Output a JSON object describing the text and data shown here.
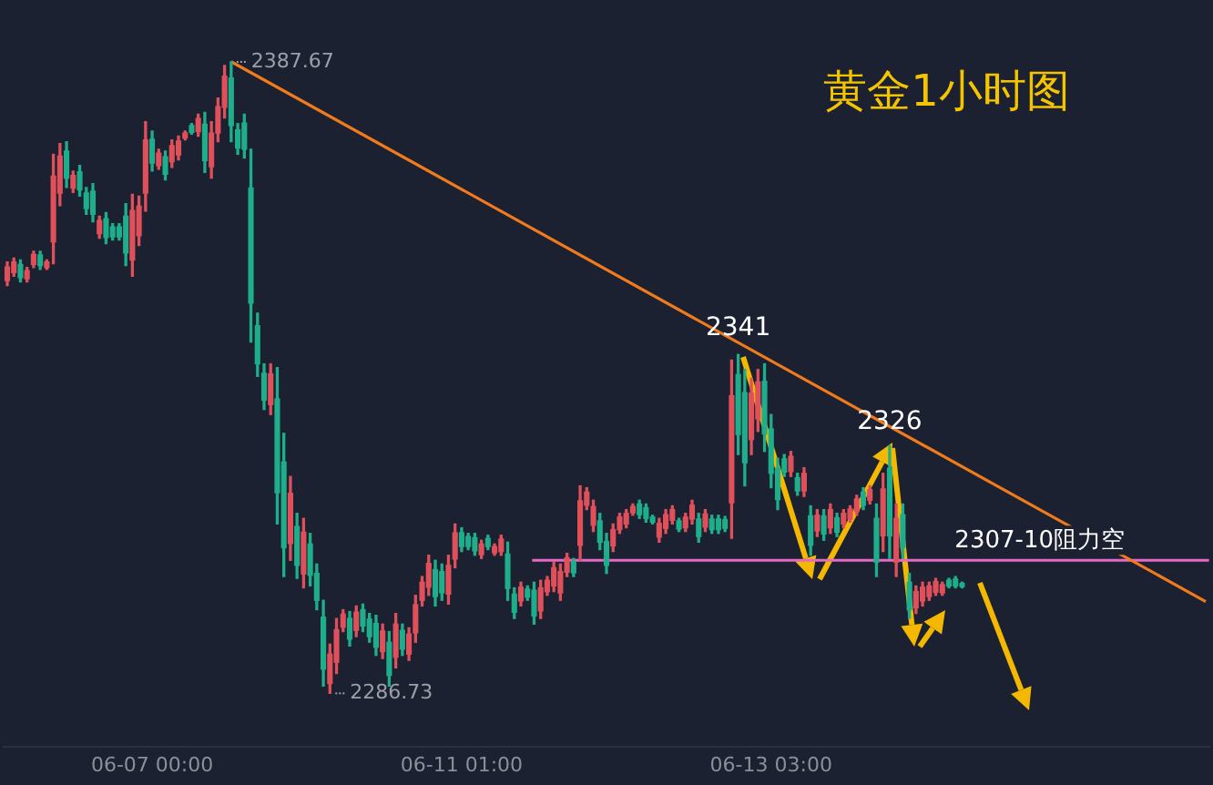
{
  "chart_data": {
    "type": "candlestick",
    "title": "黄金1小时图",
    "categories": [
      null,
      null,
      null,
      null,
      null,
      null,
      null,
      null,
      null,
      null,
      null,
      null,
      null,
      null,
      null,
      null,
      null,
      null,
      null,
      null,
      null,
      null,
      "06-07 00:00",
      null,
      null,
      null,
      null,
      null,
      null,
      null,
      null,
      null,
      null,
      null,
      null,
      null,
      null,
      null,
      null,
      null,
      null,
      null,
      null,
      null,
      null,
      null,
      null,
      null,
      null,
      null,
      null,
      null,
      null,
      null,
      null,
      null,
      null,
      null,
      null,
      null,
      null,
      null,
      null,
      null,
      null,
      null,
      null,
      null,
      null,
      "06-11 01:00",
      null,
      null,
      null,
      null,
      null,
      null,
      null,
      null,
      null,
      null,
      null,
      null,
      null,
      null,
      null,
      null,
      null,
      null,
      null,
      null,
      null,
      null,
      null,
      null,
      null,
      null,
      null,
      null,
      null,
      null,
      null,
      null,
      null,
      null,
      null,
      null,
      null,
      null,
      null,
      null,
      null,
      null,
      null,
      null,
      null,
      null,
      "06-13 03:00",
      null,
      null,
      null,
      null,
      null,
      null,
      null,
      null,
      null,
      null,
      null,
      null,
      null,
      null,
      null,
      null,
      null,
      null,
      null,
      null,
      null,
      null,
      null,
      null,
      null,
      null,
      null,
      null,
      null,
      null,
      null,
      null,
      null,
      null,
      null,
      null,
      null,
      null,
      null,
      null,
      null,
      null,
      null,
      null,
      null,
      null,
      null,
      null,
      null,
      null,
      null,
      null,
      null,
      null,
      null,
      null,
      null,
      null,
      null,
      null,
      null,
      null,
      null,
      null,
      null,
      null
    ],
    "ohlc": [
      [
        2352.7,
        2355.7,
        2351.9,
        2354.9
      ],
      [
        2354.0,
        2356.3,
        2353.4,
        2355.7
      ],
      [
        2355.3,
        2356.0,
        2352.5,
        2353.2
      ],
      [
        2353.0,
        2354.8,
        2352.5,
        2354.3
      ],
      [
        2355.3,
        2357.4,
        2354.8,
        2356.9
      ],
      [
        2356.8,
        2357.4,
        2354.5,
        2355.1
      ],
      [
        2354.8,
        2356.0,
        2354.5,
        2355.7
      ],
      [
        2358.9,
        2372.9,
        2355.4,
        2369.4
      ],
      [
        2366.7,
        2374.6,
        2364.7,
        2372.6
      ],
      [
        2373.4,
        2374.9,
        2367.6,
        2369.1
      ],
      [
        2367.5,
        2370.2,
        2366.8,
        2369.5
      ],
      [
        2370.1,
        2371.1,
        2366.2,
        2367.2
      ],
      [
        2366.7,
        2367.6,
        2363.3,
        2364.2
      ],
      [
        2367.0,
        2368.2,
        2362.1,
        2363.3
      ],
      [
        2360.2,
        2363.0,
        2359.5,
        2362.3
      ],
      [
        2362.6,
        2363.6,
        2358.6,
        2359.6
      ],
      [
        2361.3,
        2361.8,
        2359.2,
        2359.7
      ],
      [
        2361.3,
        2361.8,
        2359.2,
        2359.7
      ],
      [
        2363.0,
        2365.0,
        2355.1,
        2357.1
      ],
      [
        2356.0,
        2366.5,
        2353.4,
        2363.9
      ],
      [
        2359.9,
        2366.2,
        2358.3,
        2364.6
      ],
      [
        2366.7,
        2378.1,
        2363.8,
        2375.2
      ],
      [
        2375.3,
        2376.6,
        2370.2,
        2371.5
      ],
      [
        2371.1,
        2373.7,
        2370.5,
        2373.1
      ],
      [
        2372.5,
        2373.4,
        2368.8,
        2369.7
      ],
      [
        2371.7,
        2375.2,
        2370.8,
        2374.3
      ],
      [
        2372.8,
        2375.8,
        2372.0,
        2375.0
      ],
      [
        2375.5,
        2376.6,
        2375.2,
        2376.3
      ],
      [
        2377.5,
        2377.8,
        2376.1,
        2376.4
      ],
      [
        2376.5,
        2379.3,
        2375.8,
        2378.6
      ],
      [
        2377.7,
        2379.6,
        2370.0,
        2371.9
      ],
      [
        2370.9,
        2378.1,
        2369.1,
        2376.3
      ],
      [
        2376.3,
        2381.9,
        2374.9,
        2380.5
      ],
      [
        2380.4,
        2387.1,
        2378.7,
        2385.4
      ],
      [
        2385.1,
        2387.67,
        2374.9,
        2377.5
      ],
      [
        2376.8,
        2377.8,
        2372.9,
        2373.9
      ],
      [
        2377.9,
        2379.3,
        2372.3,
        2373.7
      ],
      [
        2367.5,
        2373.7,
        2342.9,
        2349.1
      ],
      [
        2345.5,
        2347.5,
        2337.4,
        2339.4
      ],
      [
        2337.9,
        2339.4,
        2332.1,
        2333.6
      ],
      [
        2332.9,
        2339.4,
        2331.3,
        2337.8
      ],
      [
        2333.8,
        2338.8,
        2313.8,
        2318.8
      ],
      [
        2323.7,
        2328.3,
        2305.4,
        2310.0
      ],
      [
        2310.7,
        2321.4,
        2308.0,
        2318.7
      ],
      [
        2313.4,
        2315.5,
        2305.1,
        2307.2
      ],
      [
        2305.8,
        2314.7,
        2303.6,
        2312.5
      ],
      [
        2310.6,
        2312.3,
        2303.9,
        2305.6
      ],
      [
        2305.9,
        2307.4,
        2300.1,
        2301.6
      ],
      [
        2298.9,
        2301.6,
        2287.9,
        2290.6
      ],
      [
        2288.3,
        2294.6,
        2286.73,
        2293.0
      ],
      [
        2291.7,
        2298.7,
        2289.9,
        2296.9
      ],
      [
        2297.3,
        2300.1,
        2296.6,
        2299.4
      ],
      [
        2298.7,
        2299.8,
        2294.3,
        2295.4
      ],
      [
        2296.8,
        2300.7,
        2295.8,
        2299.7
      ],
      [
        2300.1,
        2301.0,
        2296.6,
        2297.5
      ],
      [
        2298.6,
        2299.5,
        2294.9,
        2295.8
      ],
      [
        2297.9,
        2299.2,
        2292.8,
        2294.1
      ],
      [
        2293.4,
        2297.8,
        2292.3,
        2296.7
      ],
      [
        2294.9,
        2296.6,
        2287.9,
        2289.6
      ],
      [
        2292.5,
        2299.5,
        2290.8,
        2297.8
      ],
      [
        2296.8,
        2297.8,
        2292.8,
        2293.8
      ],
      [
        2293.0,
        2297.2,
        2292.0,
        2296.2
      ],
      [
        2296.4,
        2302.4,
        2294.9,
        2300.9
      ],
      [
        2301.6,
        2305.4,
        2300.7,
        2304.5
      ],
      [
        2303.7,
        2308.8,
        2302.4,
        2307.5
      ],
      [
        2306.5,
        2308.0,
        2300.7,
        2302.2
      ],
      [
        2306.2,
        2307.4,
        2301.6,
        2302.8
      ],
      [
        2302.6,
        2308.8,
        2301.0,
        2307.2
      ],
      [
        2308.2,
        2313.8,
        2306.8,
        2312.4
      ],
      [
        2312.4,
        2313.2,
        2309.4,
        2310.2
      ],
      [
        2311.8,
        2312.3,
        2309.7,
        2310.2
      ],
      [
        2311.6,
        2312.3,
        2308.8,
        2309.5
      ],
      [
        2308.9,
        2311.2,
        2308.3,
        2310.6
      ],
      [
        2311.5,
        2312.0,
        2309.7,
        2310.2
      ],
      [
        2309.2,
        2310.6,
        2308.8,
        2310.2
      ],
      [
        2309.4,
        2312.0,
        2308.8,
        2311.4
      ],
      [
        2309.0,
        2310.9,
        2301.6,
        2303.5
      ],
      [
        2302.6,
        2303.6,
        2298.7,
        2299.7
      ],
      [
        2301.5,
        2304.5,
        2300.7,
        2303.7
      ],
      [
        2303.4,
        2303.9,
        2301.6,
        2302.1
      ],
      [
        2303.2,
        2304.5,
        2297.8,
        2299.1
      ],
      [
        2299.9,
        2304.8,
        2298.7,
        2303.6
      ],
      [
        2303.0,
        2305.4,
        2302.4,
        2304.8
      ],
      [
        2303.9,
        2307.7,
        2303.0,
        2306.8
      ],
      [
        2302.8,
        2307.4,
        2301.6,
        2306.2
      ],
      [
        2306.1,
        2309.1,
        2305.4,
        2308.4
      ],
      [
        2307.7,
        2308.3,
        2305.4,
        2306.0
      ],
      [
        2310.4,
        2319.9,
        2308.0,
        2317.5
      ],
      [
        2316.8,
        2319.6,
        2316.1,
        2318.9
      ],
      [
        2313.6,
        2317.6,
        2312.6,
        2316.6
      ],
      [
        2314.3,
        2315.5,
        2309.7,
        2310.9
      ],
      [
        2311.0,
        2312.3,
        2305.9,
        2307.2
      ],
      [
        2310.3,
        2313.8,
        2309.4,
        2312.9
      ],
      [
        2312.9,
        2315.5,
        2312.3,
        2314.9
      ],
      [
        2313.8,
        2316.1,
        2313.2,
        2315.5
      ],
      [
        2315.6,
        2317.0,
        2315.2,
        2316.6
      ],
      [
        2317.0,
        2317.6,
        2314.7,
        2315.3
      ],
      [
        2316.4,
        2317.0,
        2314.1,
        2314.7
      ],
      [
        2314.9,
        2315.2,
        2313.8,
        2314.1
      ],
      [
        2311.7,
        2314.7,
        2310.9,
        2313.9
      ],
      [
        2313.1,
        2316.1,
        2312.3,
        2315.3
      ],
      [
        2314.4,
        2316.7,
        2313.8,
        2316.1
      ],
      [
        2314.3,
        2314.7,
        2312.6,
        2313.0
      ],
      [
        2313.2,
        2315.5,
        2312.6,
        2314.9
      ],
      [
        2314.6,
        2317.6,
        2313.8,
        2316.8
      ],
      [
        2314.6,
        2315.5,
        2310.9,
        2311.8
      ],
      [
        2313.3,
        2316.1,
        2312.6,
        2315.4
      ],
      [
        2314.6,
        2315.2,
        2312.3,
        2312.9
      ],
      [
        2314.6,
        2315.2,
        2312.3,
        2312.9
      ],
      [
        2314.5,
        2315.0,
        2312.6,
        2313.1
      ],
      [
        2317.2,
        2340.0,
        2311.5,
        2334.3
      ],
      [
        2337.7,
        2340.9,
        2324.9,
        2328.1
      ],
      [
        2334.8,
        2338.5,
        2319.9,
        2323.6
      ],
      [
        2327.3,
        2337.1,
        2324.9,
        2334.7
      ],
      [
        2330.6,
        2338.5,
        2328.6,
        2336.5
      ],
      [
        2336.6,
        2339.4,
        2325.4,
        2328.2
      ],
      [
        2329.0,
        2331.3,
        2319.6,
        2321.9
      ],
      [
        2322.7,
        2324.3,
        2316.1,
        2317.7
      ],
      [
        2324.2,
        2324.9,
        2321.4,
        2322.1
      ],
      [
        2322.2,
        2325.4,
        2321.4,
        2324.6
      ],
      [
        2321.2,
        2321.9,
        2318.4,
        2319.1
      ],
      [
        2319.1,
        2322.8,
        2318.2,
        2321.9
      ],
      [
        2315.1,
        2316.7,
        2308.8,
        2310.4
      ],
      [
        2312.7,
        2316.1,
        2311.8,
        2315.2
      ],
      [
        2315.1,
        2316.1,
        2311.2,
        2312.2
      ],
      [
        2313.2,
        2317.0,
        2312.3,
        2316.1
      ],
      [
        2314.8,
        2315.5,
        2311.8,
        2312.5
      ],
      [
        2313.8,
        2316.1,
        2313.2,
        2315.5
      ],
      [
        2314.6,
        2316.7,
        2314.1,
        2316.2
      ],
      [
        2315.8,
        2318.4,
        2315.2,
        2317.8
      ],
      [
        2318.9,
        2319.6,
        2316.1,
        2316.8
      ],
      [
        2317.6,
        2319.9,
        2317.0,
        2319.3
      ],
      [
        2314.7,
        2317.0,
        2305.4,
        2307.7
      ],
      [
        2311.9,
        2321.9,
        2309.4,
        2319.4
      ],
      [
        2322.7,
        2326.3,
        2308.3,
        2311.9
      ],
      [
        2307.7,
        2317.0,
        2305.4,
        2314.7
      ],
      [
        2315.3,
        2317.0,
        2308.3,
        2310.0
      ],
      [
        2304.5,
        2305.9,
        2298.7,
        2300.1
      ],
      [
        2300.4,
        2303.9,
        2299.5,
        2303.0
      ],
      [
        2301.5,
        2304.5,
        2300.7,
        2303.7
      ],
      [
        2302.2,
        2304.5,
        2301.6,
        2303.9
      ],
      [
        2302.9,
        2305.1,
        2302.4,
        2304.6
      ],
      [
        2302.8,
        2304.5,
        2302.4,
        2304.1
      ],
      [
        2304.8,
        2305.1,
        2303.6,
        2303.9
      ],
      [
        2305.0,
        2305.4,
        2303.6,
        2303.9
      ],
      [
        2304.3,
        2304.5,
        2303.6,
        2303.8
      ],
      null,
      null,
      null,
      null,
      null,
      null,
      null,
      null,
      null,
      null,
      null,
      null,
      null,
      null,
      null,
      null,
      null,
      null,
      null,
      null,
      null,
      null,
      null,
      null,
      null,
      null,
      null,
      null,
      null,
      null,
      null,
      null,
      null,
      null,
      null,
      null,
      null
    ],
    "colors": [
      "#e0505a",
      "#e0505a",
      "#1fae8c",
      "#e0505a",
      "#e0505a",
      "#1fae8c",
      "#e0505a",
      "#e0505a",
      "#e0505a",
      "#1fae8c",
      "#e0505a",
      "#1fae8c",
      "#1fae8c",
      "#1fae8c",
      "#e0505a",
      "#1fae8c",
      "#1fae8c",
      "#1fae8c",
      "#1fae8c",
      "#e0505a",
      "#e0505a",
      "#e0505a",
      "#1fae8c",
      "#e0505a",
      "#1fae8c",
      "#e0505a",
      "#e0505a",
      "#e0505a",
      "#1fae8c",
      "#e0505a",
      "#1fae8c",
      "#e0505a",
      "#e0505a",
      "#e0505a",
      "#1fae8c",
      "#1fae8c",
      "#1fae8c",
      "#1fae8c",
      "#1fae8c",
      "#1fae8c",
      "#e0505a",
      "#1fae8c",
      "#1fae8c",
      "#e0505a",
      "#1fae8c",
      "#e0505a",
      "#1fae8c",
      "#1fae8c",
      "#1fae8c",
      "#e0505a",
      "#e0505a",
      "#e0505a",
      "#1fae8c",
      "#e0505a",
      "#1fae8c",
      "#1fae8c",
      "#1fae8c",
      "#e0505a",
      "#1fae8c",
      "#e0505a",
      "#1fae8c",
      "#e0505a",
      "#e0505a",
      "#e0505a",
      "#e0505a",
      "#1fae8c",
      "#1fae8c",
      "#e0505a",
      "#e0505a",
      "#1fae8c",
      "#1fae8c",
      "#1fae8c",
      "#e0505a",
      "#1fae8c",
      "#e0505a",
      "#e0505a",
      "#1fae8c",
      "#1fae8c",
      "#e0505a",
      "#1fae8c",
      "#1fae8c",
      "#e0505a",
      "#e0505a",
      "#e0505a",
      "#e0505a",
      "#e0505a",
      "#1fae8c",
      "#e0505a",
      "#e0505a",
      "#e0505a",
      "#1fae8c",
      "#1fae8c",
      "#e0505a",
      "#e0505a",
      "#e0505a",
      "#e0505a",
      "#1fae8c",
      "#1fae8c",
      "#1fae8c",
      "#e0505a",
      "#e0505a",
      "#e0505a",
      "#1fae8c",
      "#e0505a",
      "#e0505a",
      "#1fae8c",
      "#e0505a",
      "#1fae8c",
      "#1fae8c",
      "#1fae8c",
      "#e0505a",
      "#1fae8c",
      "#1fae8c",
      "#e0505a",
      "#e0505a",
      "#1fae8c",
      "#1fae8c",
      "#1fae8c",
      "#1fae8c",
      "#e0505a",
      "#1fae8c",
      "#e0505a",
      "#1fae8c",
      "#e0505a",
      "#1fae8c",
      "#e0505a",
      "#1fae8c",
      "#e0505a",
      "#e0505a",
      "#e0505a",
      "#1fae8c",
      "#e0505a",
      "#1fae8c",
      "#e0505a",
      "#1fae8c",
      "#e0505a",
      "#1fae8c",
      "#1fae8c",
      "#e0505a",
      "#e0505a",
      "#e0505a",
      "#e0505a",
      "#e0505a",
      "#1fae8c",
      "#1fae8c",
      "#1fae8c",
      null,
      null,
      null,
      null,
      null,
      null,
      null,
      null,
      null,
      null,
      null,
      null,
      null,
      null,
      null,
      null,
      null,
      null,
      null,
      null,
      null,
      null,
      null,
      null,
      null,
      null,
      null,
      null,
      null,
      null,
      null,
      null,
      null,
      null,
      null,
      null,
      null
    ],
    "series": [
      {
        "type": "line",
        "color": "#f07a1c",
        "values": [
          null,
          null,
          null,
          null,
          null,
          null,
          null,
          null,
          null,
          null,
          null,
          null,
          null,
          null,
          null,
          null,
          null,
          null,
          null,
          null,
          null,
          null,
          null,
          null,
          null,
          null,
          null,
          null,
          null,
          null,
          null,
          null,
          null,
          null,
          2387.7,
          null,
          null,
          null,
          null,
          null,
          null,
          null,
          null,
          null,
          null,
          null,
          null,
          null,
          null,
          null,
          null,
          null,
          null,
          null,
          null,
          null,
          null,
          null,
          null,
          null,
          null,
          null,
          null,
          null,
          null,
          null,
          null,
          null,
          null,
          null,
          null,
          null,
          null,
          null,
          null,
          null,
          null,
          null,
          null,
          null,
          null,
          null,
          null,
          null,
          null,
          null,
          null,
          null,
          null,
          null,
          null,
          null,
          null,
          null,
          null,
          null,
          null,
          null,
          null,
          null,
          null,
          null,
          null,
          null,
          null,
          null,
          null,
          null,
          null,
          null,
          null,
          null,
          null,
          null,
          null,
          null,
          null,
          null,
          null,
          null,
          null,
          null,
          null,
          null,
          null,
          null,
          null,
          null,
          null,
          null,
          null,
          null,
          null,
          null,
          null,
          null,
          null,
          null,
          null,
          null,
          null,
          null,
          null,
          null,
          null,
          null,
          null,
          null,
          null,
          null,
          null,
          null,
          null,
          null,
          null,
          null,
          null,
          null,
          null,
          null,
          null,
          null,
          null,
          null,
          null,
          null,
          null,
          null,
          null,
          null,
          null,
          null,
          null,
          null,
          null,
          null,
          null,
          null,
          null,
          null,
          null,
          null,
          2301.4
        ]
      }
    ],
    "ref_lines": [
      {
        "axis": "y",
        "value": 2308,
        "label": "2307-10阻力空",
        "color": "#e46ac6"
      }
    ],
    "annotations": [
      "2387.67",
      "2286.73",
      {
        "text": "2341",
        "y": 2341
      },
      {
        "text": "2326",
        "y": 2326
      }
    ],
    "legend": false
  }
}
